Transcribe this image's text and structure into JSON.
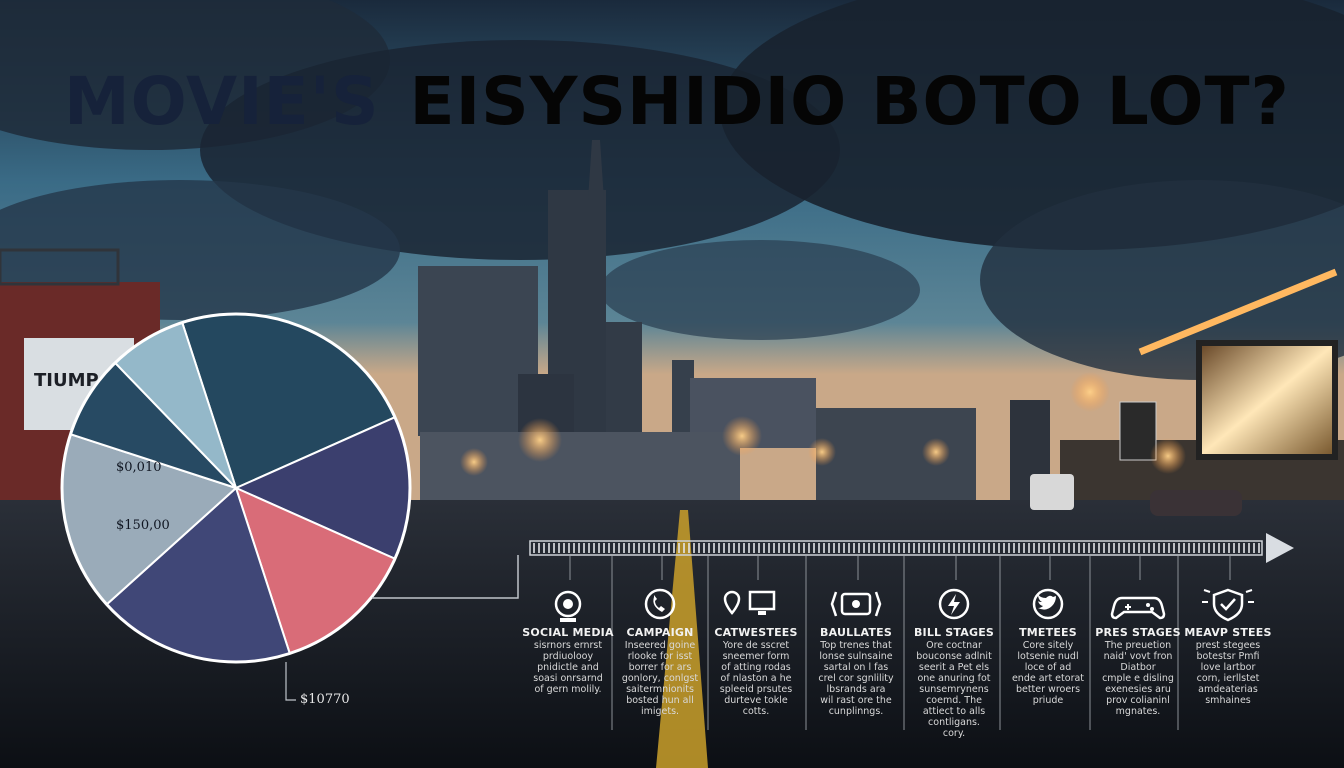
{
  "headline": {
    "part_a": "MOVIE'S",
    "part_b": "EISYSHIDIO BOTO LOT?"
  },
  "building_sign": "TIUMP",
  "pie": {
    "label_top": "$0,010",
    "label_mid": "$150,00",
    "label_bottom": "$10770",
    "colors": [
      "#24485f",
      "#3b3f6e",
      "#d96c78",
      "#404777",
      "#9aabb9",
      "#274a63",
      "#94b8c9"
    ]
  },
  "timeline": {
    "stages": [
      {
        "icon": "webcam-icon",
        "title": "SOCIAL MEDIA",
        "desc": "sisrnors ernrst\nprdiuolooy\npnidictle and\nsoasi onrsarnd\nof gern molily."
      },
      {
        "icon": "phone-icon",
        "title": "CAMPAIGN",
        "desc": "Inseered goine\nrlooke for isst\nborrer for ars\ngonlory, conlgst\nsaitermnionits\nbosted hun all\nimigets."
      },
      {
        "icon": "location-monitor-icon",
        "title": "CATWESTEES",
        "desc": "Yore de sscret\nsneemer form\nof atting rodas\nof nlaston a he\nspleeid prsutes\ndurteve tokle\ncotts."
      },
      {
        "icon": "film-reel-icon",
        "title": "BAULLATES",
        "desc": "Top trenes that\nlonse sulnsaine\nsartal on l fas\ncrel cor sgnlility\nlbsrands ara\nwil rast ore the\ncunplinngs."
      },
      {
        "icon": "lightning-icon",
        "title": "BILL STAGES",
        "desc": "Ore coctnar\nbouconse adlnit\nseerit a Pet els\none anuring fot\nsunsemrynens\ncoemd. The\nattiect to alls\ncontligans.\ncory."
      },
      {
        "icon": "twitter-bird-icon",
        "title": "TMETEES",
        "desc": "Core sitely\nlotsenie nudl\nloce of ad\nende art etorat\nbetter wroers\npriude"
      },
      {
        "icon": "gamepad-icon",
        "title": "PRES STAGES",
        "desc": "The preuetion\nnaid' vovt fron\nDiatbor\ncmple e disling\nexenesies aru\nprov colianinl\nmgnates."
      },
      {
        "icon": "shield-icon",
        "title": "MEAVP STEES",
        "desc": "prest stegees\nbotestsr Pmfi\nlove lartbor\ncorn, ierllstet\namdeaterias\nsmhaines"
      }
    ]
  }
}
